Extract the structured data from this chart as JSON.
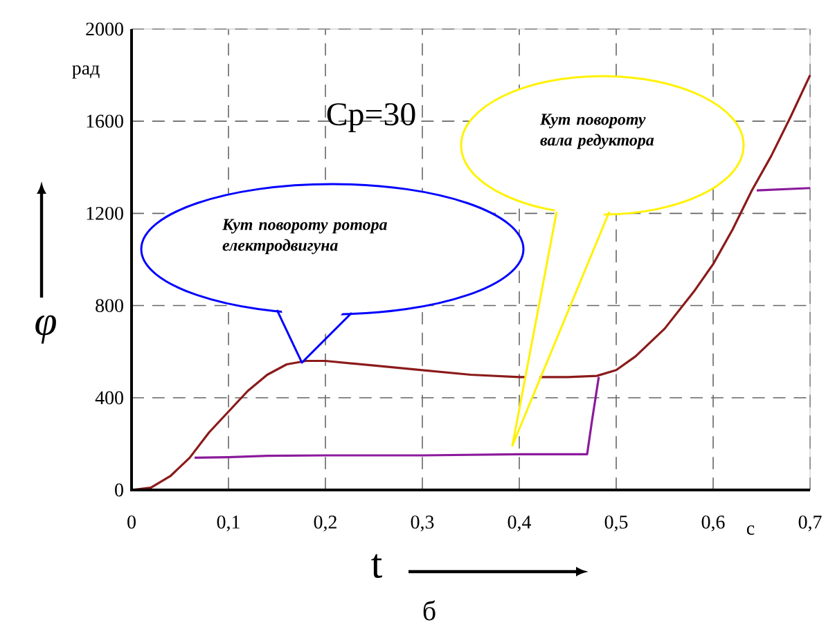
{
  "chart_data": {
    "type": "line",
    "xlabel": "t",
    "ylabel": "φ",
    "xlim": [
      0,
      0.7
    ],
    "ylim": [
      0,
      2000
    ],
    "xticks": [
      {
        "value": 0,
        "label": "0"
      },
      {
        "value": 0.1,
        "label": "0,1"
      },
      {
        "value": 0.2,
        "label": "0,2"
      },
      {
        "value": 0.3,
        "label": "0,3"
      },
      {
        "value": 0.4,
        "label": "0,4"
      },
      {
        "value": 0.5,
        "label": "0,5"
      },
      {
        "value": 0.6,
        "label": "0,6"
      },
      {
        "value": 0.7,
        "label": "0,7"
      }
    ],
    "yticks": [
      0,
      400,
      800,
      1200,
      1600,
      2000
    ],
    "grid": true,
    "line_style": "solid",
    "marker": "none",
    "series": [
      {
        "color": "#8b1a1a",
        "x": [
          0,
          0.02,
          0.04,
          0.06,
          0.08,
          0.1,
          0.12,
          0.14,
          0.16,
          0.18,
          0.2,
          0.25,
          0.3,
          0.35,
          0.4,
          0.45,
          0.48,
          0.5,
          0.52,
          0.55,
          0.58,
          0.6,
          0.62,
          0.64,
          0.66,
          0.68,
          0.7
        ],
        "values": [
          0,
          10,
          60,
          140,
          250,
          340,
          430,
          500,
          545,
          560,
          560,
          540,
          520,
          500,
          490,
          490,
          495,
          520,
          580,
          700,
          860,
          980,
          1130,
          1300,
          1450,
          1620,
          1800
        ]
      },
      {
        "color": "#8b1a9b",
        "x": [
          0.065,
          0.1,
          0.14,
          0.2,
          0.3,
          0.4,
          0.47,
          0.475,
          0.482,
          0.56,
          0.645,
          0.7
        ],
        "values": [
          140,
          142,
          148,
          150,
          150,
          155,
          155,
          300,
          490,
          null,
          1300,
          1310
        ]
      }
    ],
    "annotations": [
      "Кут повороту ротора електродвигуна",
      "Кут повороту вала редуктора",
      "Cp=30",
      "рад",
      "с",
      "б"
    ]
  }
}
